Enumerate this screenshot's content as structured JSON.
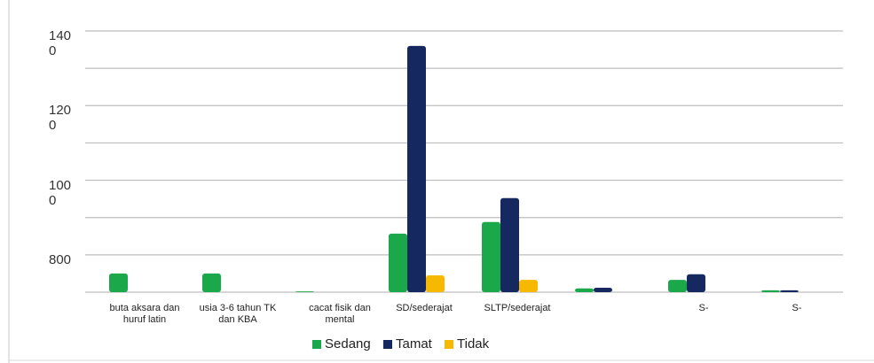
{
  "chart_data": {
    "type": "bar",
    "categories": [
      "buta aksara dan huruf latin",
      "usia 3-6 tahun TK dan KBA",
      "cacat fisik dan mental",
      "SD/sederajat",
      "SLTP/sederajat",
      null,
      "S-",
      "S-"
    ],
    "series": [
      {
        "name": "Sedang",
        "color": "#1ba84a",
        "values": [
          750,
          750,
          702,
          857,
          888,
          710,
          733,
          705
        ]
      },
      {
        "name": "Tamat",
        "color": "#15285f",
        "values": [
          null,
          null,
          null,
          1360,
          952,
          712,
          748,
          705
        ]
      },
      {
        "name": "Tidak",
        "color": "#f6b800",
        "values": [
          null,
          null,
          null,
          745,
          733,
          null,
          null,
          null
        ]
      }
    ],
    "ylim": [
      700,
      1400
    ],
    "yticks": [
      800,
      1000,
      1200,
      1400
    ],
    "yticks_minor": [
      700,
      900,
      1100,
      1300
    ],
    "grid": true,
    "legend": "bottom"
  }
}
